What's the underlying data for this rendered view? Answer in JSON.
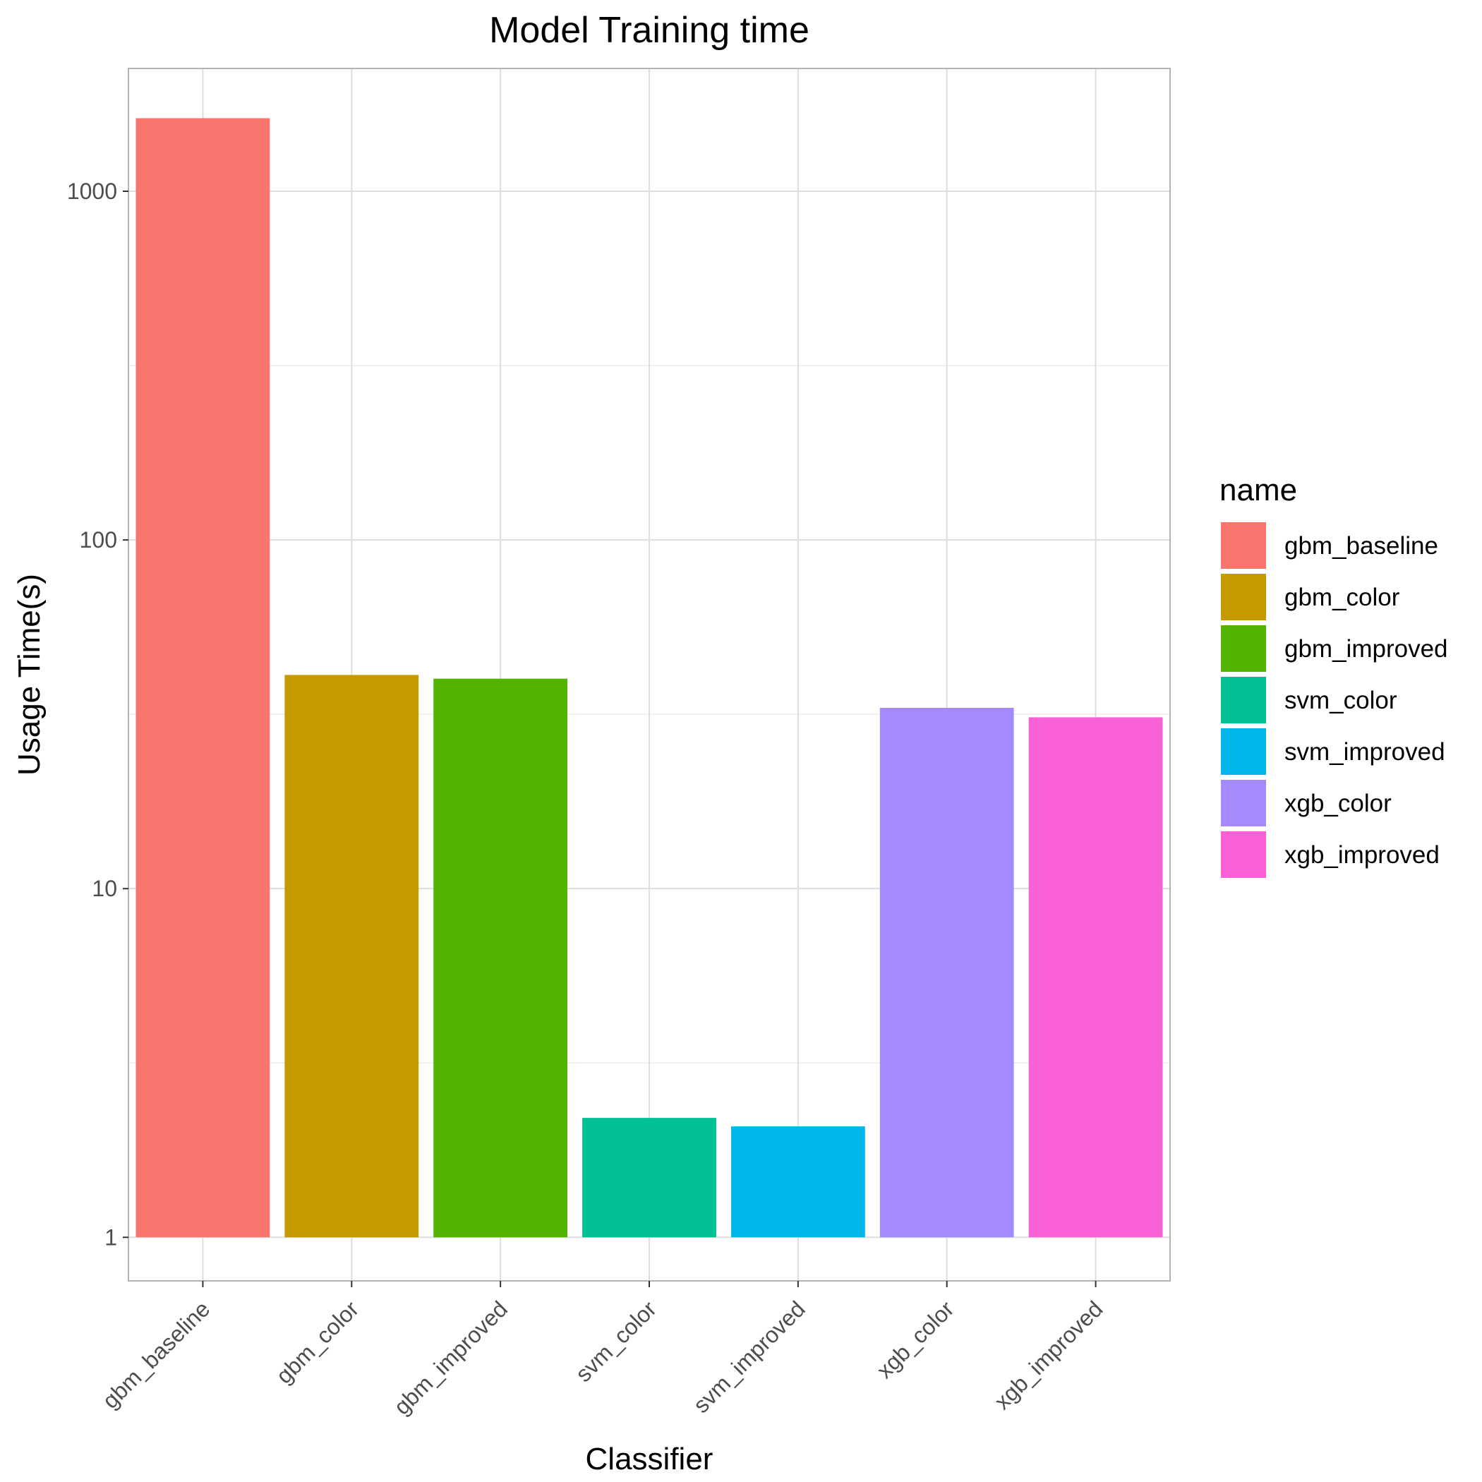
{
  "chart_data": {
    "type": "bar",
    "title": "Model Training time",
    "xlabel": "Classifier",
    "ylabel": "Usage Time(s)",
    "y_scale": "log10",
    "ylim": [
      0.75,
      2250
    ],
    "y_ticks": [
      1,
      10,
      100,
      1000
    ],
    "y_tick_labels": [
      "1",
      "10",
      "100",
      "1000"
    ],
    "grid": true,
    "categories": [
      "gbm_baseline",
      "gbm_color",
      "gbm_improved",
      "svm_color",
      "svm_improved",
      "xgb_color",
      "xgb_improved"
    ],
    "values": [
      1620,
      41,
      40,
      2.2,
      2.08,
      33,
      31
    ],
    "colors": [
      "#F8766D",
      "#C49A00",
      "#53B400",
      "#00C094",
      "#00B6EB",
      "#A58AFF",
      "#FB61D7"
    ],
    "legend": {
      "title": "name",
      "placement": "right",
      "items": [
        "gbm_baseline",
        "gbm_color",
        "gbm_improved",
        "svm_color",
        "svm_improved",
        "xgb_color",
        "xgb_improved"
      ]
    }
  }
}
